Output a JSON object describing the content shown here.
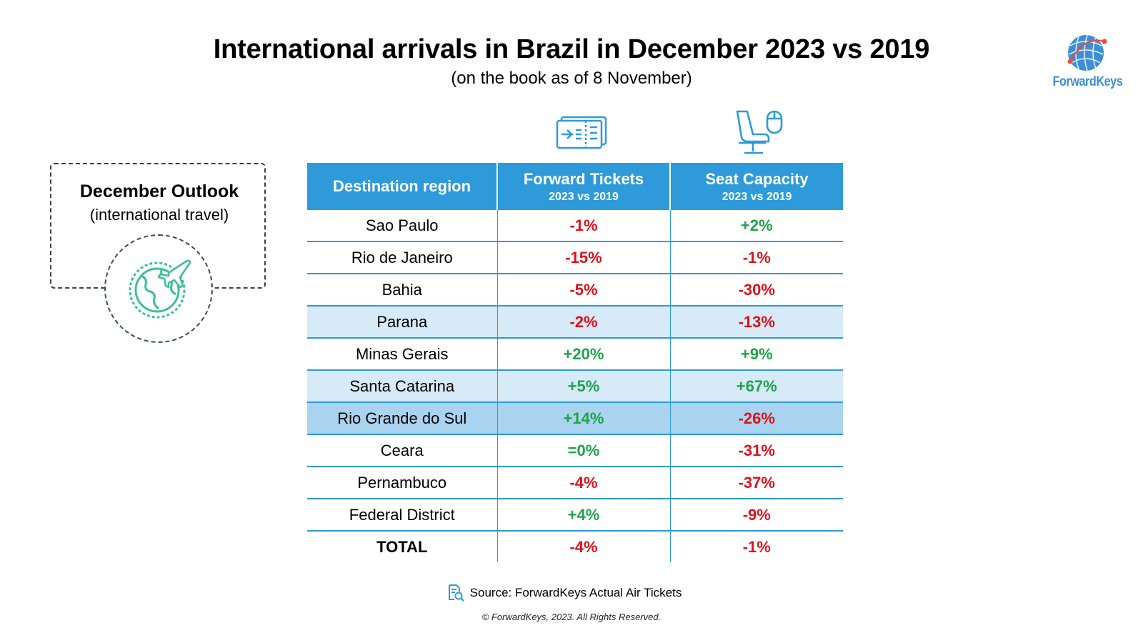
{
  "title": "International arrivals in Brazil in December 2023 vs 2019",
  "subtitle": "(on the book as of 8 November)",
  "logo": {
    "text": "ForwardKeys",
    "icon": "globe-network-icon",
    "color": "#3d8ed6"
  },
  "outlook": {
    "title": "December Outlook",
    "subtitle": "(international travel)",
    "icon": "globe-airplane-icon",
    "icon_color": "#3dbf9c"
  },
  "table": {
    "headers": [
      {
        "main": "Destination region",
        "sub": ""
      },
      {
        "main": "Forward Tickets",
        "sub": "2023 vs 2019",
        "icon": "ticket-icon"
      },
      {
        "main": "Seat Capacity",
        "sub": "2023 vs 2019",
        "icon": "airplane-seat-icon"
      }
    ],
    "rows": [
      {
        "region": "Sao Paulo",
        "tickets": "-1%",
        "seats": "+2%"
      },
      {
        "region": "Rio de Janeiro",
        "tickets": "-15%",
        "seats": "-1%"
      },
      {
        "region": "Bahia",
        "tickets": "-5%",
        "seats": "-30%"
      },
      {
        "region": "Parana",
        "tickets": "-2%",
        "seats": "-13%"
      },
      {
        "region": "Minas Gerais",
        "tickets": "+20%",
        "seats": "+9%"
      },
      {
        "region": "Santa Catarina",
        "tickets": "+5%",
        "seats": "+67%"
      },
      {
        "region": "Rio Grande do Sul",
        "tickets": "+14%",
        "seats": "-26%"
      },
      {
        "region": "Ceara",
        "tickets": "=0%",
        "seats": "-31%"
      },
      {
        "region": "Pernambuco",
        "tickets": "-4%",
        "seats": "-37%"
      },
      {
        "region": "Federal District",
        "tickets": "+4%",
        "seats": "-9%"
      },
      {
        "region": "TOTAL",
        "tickets": "-4%",
        "seats": "-1%"
      }
    ]
  },
  "colors": {
    "header_bg": "#2e9ad9",
    "positive": "#1ea34a",
    "negative": "#e0111a",
    "row_highlight_light": "#d6eaf7",
    "row_highlight_mid": "#a9d3ef"
  },
  "source": {
    "text": "Source: ForwardKeys Actual Air Tickets",
    "icon": "document-search-icon"
  },
  "copyright": "© ForwardKeys, 2023. All Rights Reserved.",
  "chart_data": {
    "type": "table",
    "title": "International arrivals in Brazil in December 2023 vs 2019",
    "subtitle": "(on the book as of 8 November)",
    "columns": [
      "Destination region",
      "Forward Tickets 2023 vs 2019",
      "Seat Capacity 2023 vs 2019"
    ],
    "categories": [
      "Sao Paulo",
      "Rio de Janeiro",
      "Bahia",
      "Parana",
      "Minas Gerais",
      "Santa Catarina",
      "Rio Grande do Sul",
      "Ceara",
      "Pernambuco",
      "Federal District",
      "TOTAL"
    ],
    "series": [
      {
        "name": "Forward Tickets",
        "values": [
          -1,
          -15,
          -5,
          -2,
          20,
          5,
          14,
          0,
          -4,
          4,
          -4
        ]
      },
      {
        "name": "Seat Capacity",
        "values": [
          2,
          -1,
          -30,
          -13,
          9,
          67,
          -26,
          -31,
          -37,
          -9,
          -1
        ]
      }
    ]
  }
}
